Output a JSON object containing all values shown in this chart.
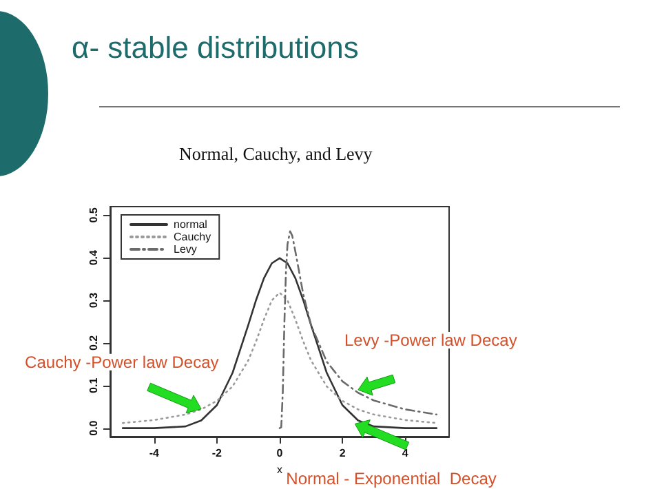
{
  "chart_data": {
    "type": "line",
    "title": "α- stable distributions",
    "subtitle": "Normal, Cauchy, and Levy",
    "xlabel": "x",
    "x": [
      -5,
      -4,
      -3,
      -2.5,
      -2,
      -1.5,
      -1,
      -0.75,
      -0.5,
      -0.25,
      0,
      0.25,
      0.5,
      0.75,
      1,
      1.5,
      2,
      2.5,
      3,
      4,
      5
    ],
    "xlim": [
      -5.4,
      5.4
    ],
    "xticks": [
      -4,
      -2,
      0,
      2,
      4
    ],
    "ylim": [
      -0.02,
      0.52
    ],
    "yticks": [
      {
        "value": 0,
        "label": "0.0"
      },
      0.1,
      0.2,
      0.3,
      0.4,
      0.5
    ],
    "grid": false,
    "legend": "top left",
    "marker": "none",
    "series": [
      {
        "name": "normal",
        "color": "#333333",
        "line_style": "solid",
        "values": [
          0.0,
          0.0,
          0.004,
          0.018,
          0.054,
          0.13,
          0.242,
          0.301,
          0.352,
          0.387,
          0.399,
          0.387,
          0.352,
          0.301,
          0.242,
          0.13,
          0.054,
          0.018,
          0.004,
          0.0,
          0.0
        ]
      },
      {
        "name": "Cauchy",
        "color": "#9a9a9a",
        "line_style": "dotted",
        "values": [
          0.012,
          0.019,
          0.032,
          0.044,
          0.064,
          0.098,
          0.159,
          0.204,
          0.255,
          0.3,
          0.318,
          0.3,
          0.255,
          0.204,
          0.159,
          0.098,
          0.064,
          0.044,
          0.032,
          0.019,
          0.012
        ]
      },
      {
        "name": "Levy",
        "color": "#6a6a6a",
        "line_style": "dashed",
        "x": [
          0,
          0.05,
          0.1,
          0.15,
          0.2,
          0.25,
          0.333,
          0.4,
          0.5,
          0.75,
          1,
          1.5,
          2,
          2.5,
          3,
          4,
          5
        ],
        "values": [
          0,
          0.002,
          0.085,
          0.245,
          0.366,
          0.432,
          0.462,
          0.452,
          0.415,
          0.315,
          0.242,
          0.156,
          0.11,
          0.083,
          0.065,
          0.044,
          0.032
        ]
      }
    ],
    "annotations": [
      {
        "text": "Cauchy -Power law Decay",
        "x": -2.5,
        "y": 0.045
      },
      {
        "text": "Levy -Power law Decay",
        "x": 2.5,
        "y": 0.09
      },
      {
        "text": "Normal - Exponential  Decay",
        "x": 2.4,
        "y": 0.01
      }
    ]
  }
}
